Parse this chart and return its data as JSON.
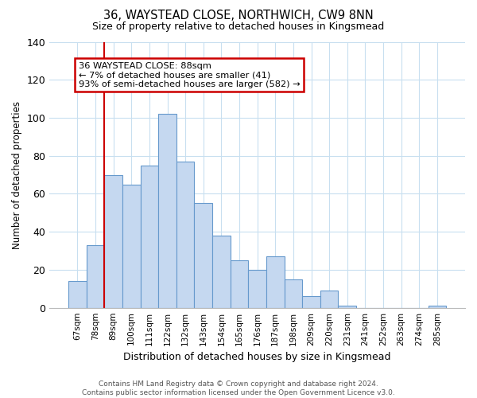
{
  "title": "36, WAYSTEAD CLOSE, NORTHWICH, CW9 8NN",
  "subtitle": "Size of property relative to detached houses in Kingsmead",
  "xlabel": "Distribution of detached houses by size in Kingsmead",
  "ylabel": "Number of detached properties",
  "bar_labels": [
    "67sqm",
    "78sqm",
    "89sqm",
    "100sqm",
    "111sqm",
    "122sqm",
    "132sqm",
    "143sqm",
    "154sqm",
    "165sqm",
    "176sqm",
    "187sqm",
    "198sqm",
    "209sqm",
    "220sqm",
    "231sqm",
    "241sqm",
    "252sqm",
    "263sqm",
    "274sqm",
    "285sqm"
  ],
  "bar_heights": [
    14,
    33,
    70,
    65,
    75,
    102,
    77,
    55,
    38,
    25,
    20,
    27,
    15,
    6,
    9,
    1,
    0,
    0,
    0,
    0,
    1
  ],
  "bar_color": "#c5d8f0",
  "bar_edge_color": "#6699cc",
  "highlight_color": "#cc0000",
  "vline_bar_index": 2,
  "annotation_line1": "36 WAYSTEAD CLOSE: 88sqm",
  "annotation_line2": "← 7% of detached houses are smaller (41)",
  "annotation_line3": "93% of semi-detached houses are larger (582) →",
  "annotation_box_color": "#ffffff",
  "annotation_box_edge": "#cc0000",
  "ylim": [
    0,
    140
  ],
  "yticks": [
    0,
    20,
    40,
    60,
    80,
    100,
    120,
    140
  ],
  "footer_line1": "Contains HM Land Registry data © Crown copyright and database right 2024.",
  "footer_line2": "Contains public sector information licensed under the Open Government Licence v3.0.",
  "bg_color": "#ffffff",
  "grid_color": "#c8dff0"
}
